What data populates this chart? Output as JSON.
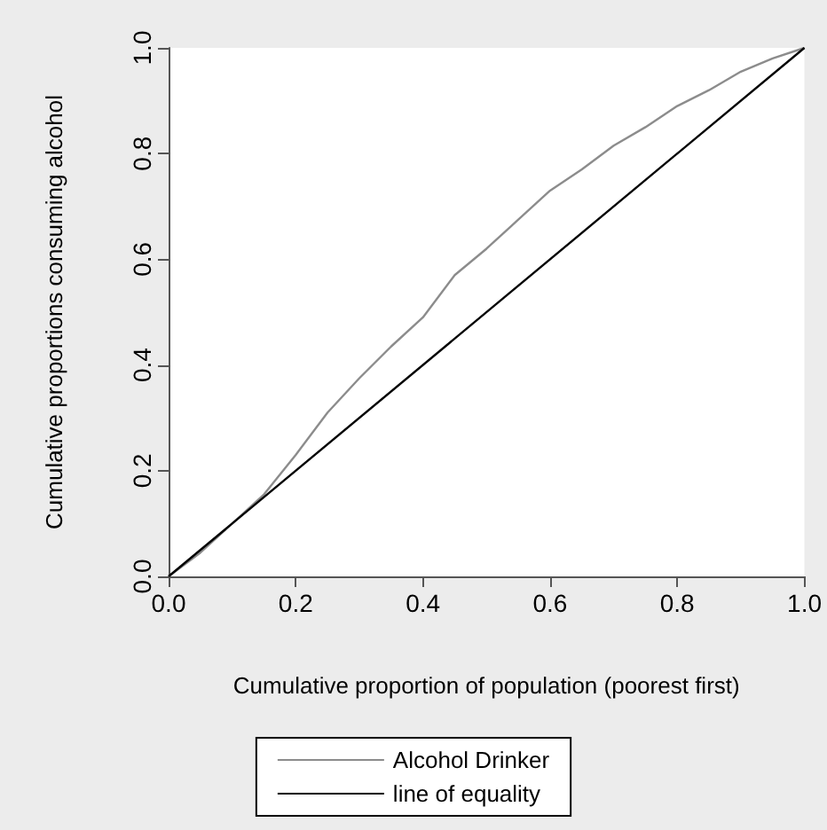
{
  "chart_data": {
    "type": "line",
    "xlabel": "Cumulative proportion of population (poorest first)",
    "ylabel": "Cumulative proportions consuming alcohol",
    "xlim": [
      0,
      1
    ],
    "ylim": [
      0,
      1
    ],
    "xticks": [
      {
        "value": 0,
        "label": "0.0"
      },
      0.2,
      0.4,
      0.6,
      0.8,
      {
        "value": 1,
        "label": "1.0"
      }
    ],
    "yticks": [
      {
        "value": 0,
        "label": "0.0"
      },
      0.2,
      0.4,
      0.6,
      0.8,
      {
        "value": 1,
        "label": "1.0"
      }
    ],
    "grid": false,
    "legend": "bottom",
    "marker": "none",
    "line_style": "solid",
    "series": [
      {
        "name": "Alcohol Drinker",
        "color": "#8c8c8c",
        "x": [
          0,
          0.05,
          0.1,
          0.15,
          0.2,
          0.25,
          0.3,
          0.35,
          0.4,
          0.45,
          0.5,
          0.55,
          0.6,
          0.65,
          0.7,
          0.75,
          0.8,
          0.85,
          0.9,
          0.95,
          1
        ],
        "values": [
          0,
          0.045,
          0.1,
          0.155,
          0.23,
          0.31,
          0.375,
          0.435,
          0.49,
          0.57,
          0.62,
          0.675,
          0.73,
          0.77,
          0.815,
          0.85,
          0.89,
          0.92,
          0.955,
          0.98,
          1
        ]
      },
      {
        "name": "line of equality",
        "color": "#000000",
        "x": [
          0,
          1
        ],
        "values": [
          0,
          1
        ]
      }
    ]
  }
}
